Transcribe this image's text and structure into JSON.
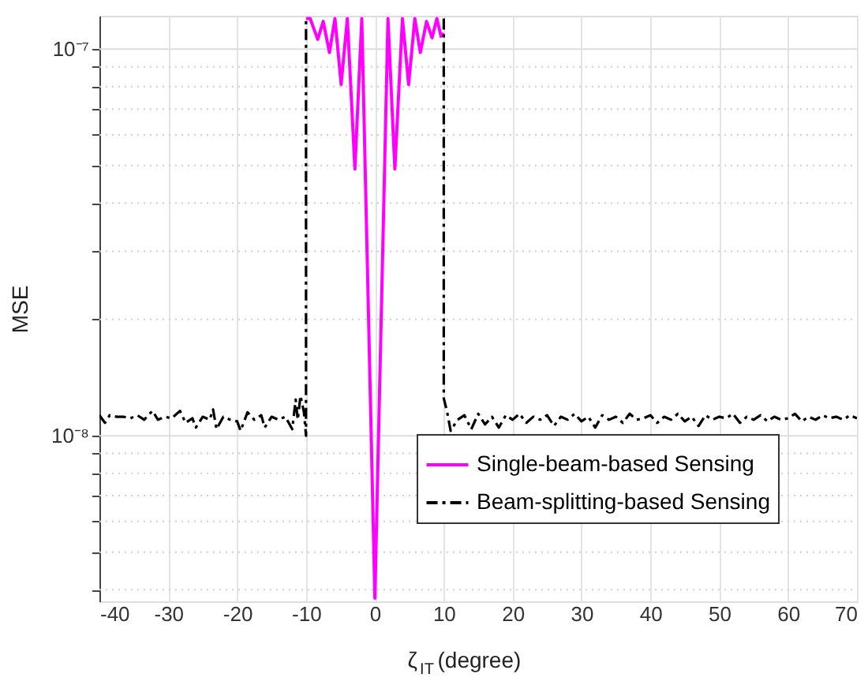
{
  "chart_data": {
    "type": "line",
    "xlabel": "ζ$_{IT}$ (degree)",
    "ylabel": "MSE",
    "log": "y",
    "grid": true,
    "legend": "bottom right",
    "xlim": [
      -40,
      70
    ],
    "xticks": [
      -40,
      -30,
      -20,
      -10,
      0,
      10,
      20,
      30,
      40,
      50,
      60,
      70
    ],
    "ylim": [
      3.73e-09,
      1.22e-07
    ],
    "yticks": [
      {
        "value": 4e-09,
        "label": null
      },
      {
        "value": 5e-09,
        "label": null
      },
      {
        "value": 6e-09,
        "label": null
      },
      {
        "value": 7e-09,
        "label": null
      },
      {
        "value": 8e-09,
        "label": null
      },
      {
        "value": 9e-09,
        "label": null
      },
      {
        "value": 1e-08,
        "label": "10⁻⁸"
      },
      {
        "value": 2e-08,
        "label": null
      },
      {
        "value": 3e-08,
        "label": null
      },
      {
        "value": 4e-08,
        "label": null
      },
      {
        "value": 5e-08,
        "label": null
      },
      {
        "value": 6e-08,
        "label": null
      },
      {
        "value": 7e-08,
        "label": null
      },
      {
        "value": 8e-08,
        "label": null
      },
      {
        "value": 9e-08,
        "label": null
      },
      {
        "value": 1e-07,
        "label": "10⁻⁷"
      }
    ],
    "series": [
      {
        "name": "Single-beam-based Sensing",
        "color": "#ff00ff",
        "line_style": "solid",
        "x": [
          -10,
          -9.4,
          -8.3,
          -7.5,
          -6.6,
          -5.8,
          -4.9,
          -4.0,
          -2.9,
          -1.9,
          0,
          1.9,
          2.9,
          4.0,
          4.9,
          5.8,
          6.6,
          7.5,
          8.3,
          9.0,
          9.6,
          10
        ],
        "values": [
          1.2e-07,
          1.2e-07,
          1.06e-07,
          1.18e-07,
          9.8e-08,
          1.2e-07,
          8.1e-08,
          1.2e-07,
          4.9e-08,
          1.2e-07,
          3.8e-09,
          1.2e-07,
          4.9e-08,
          1.2e-07,
          8.1e-08,
          1.2e-07,
          9.8e-08,
          1.18e-07,
          1.07e-07,
          1.2e-07,
          1.08e-07,
          1.1e-07
        ]
      },
      {
        "name": "Beam-splitting-based Sensing",
        "color": "#000000",
        "line_style": "dashdot",
        "x": [
          -40,
          -39.2,
          -38.5,
          -37.5,
          -36.5,
          -35.5,
          -34.5,
          -33.5,
          -32.3,
          -31.5,
          -30.5,
          -29.5,
          -28.3,
          -27.5,
          -26.5,
          -26,
          -25,
          -24,
          -23.5,
          -23,
          -22,
          -21,
          -20,
          -19.5,
          -18.5,
          -17.5,
          -16.5,
          -16,
          -15,
          -14,
          -13,
          -12,
          -11.5,
          -11.2,
          -10.8,
          -10.3,
          -10,
          -10,
          -5,
          10,
          10,
          10.5,
          11,
          12,
          13,
          14,
          15,
          16,
          17,
          18,
          19,
          20,
          21,
          22,
          23,
          24,
          25,
          26,
          27,
          28,
          29,
          30,
          31,
          32,
          33,
          34,
          35,
          36,
          37,
          38,
          39,
          40,
          41,
          42,
          43,
          44,
          45,
          46,
          47,
          48,
          49,
          50,
          51,
          52,
          53,
          54,
          55,
          56,
          57,
          58,
          59,
          60,
          61,
          62,
          63,
          64,
          65,
          66,
          67,
          68,
          69,
          70
        ],
        "values": [
          1.13e-08,
          1.08e-08,
          1.13e-08,
          1.12e-08,
          1.12e-08,
          1.11e-08,
          1.13e-08,
          1.1e-08,
          1.16e-08,
          1.1e-08,
          1.12e-08,
          1.11e-08,
          1.16e-08,
          1.08e-08,
          1.11e-08,
          1.05e-08,
          1.12e-08,
          1.1e-08,
          1.17e-08,
          1.04e-08,
          1.12e-08,
          1.1e-08,
          1.09e-08,
          1.03e-08,
          1.15e-08,
          1.1e-08,
          1.13e-08,
          1.05e-08,
          1.12e-08,
          1.1e-08,
          1.12e-08,
          1.04e-08,
          1.24e-08,
          1.1e-08,
          1.27e-08,
          1.15e-08,
          1e-08,
          1.2e-07,
          null,
          1.2e-07,
          1.25e-08,
          1.15e-08,
          1.03e-08,
          1.1e-08,
          1.13e-08,
          1.04e-08,
          1.14e-08,
          1.07e-08,
          1.12e-08,
          1.05e-08,
          1.13e-08,
          1.1e-08,
          1.14e-08,
          1.08e-08,
          1.12e-08,
          1.1e-08,
          1.13e-08,
          1.06e-08,
          1.12e-08,
          1.1e-08,
          1.14e-08,
          1.09e-08,
          1.12e-08,
          1.05e-08,
          1.13e-08,
          1.1e-08,
          1.12e-08,
          1.08e-08,
          1.14e-08,
          1.1e-08,
          1.11e-08,
          1.13e-08,
          1.08e-08,
          1.12e-08,
          1.1e-08,
          1.14e-08,
          1.09e-08,
          1.12e-08,
          1.06e-08,
          1.13e-08,
          1.1e-08,
          1.12e-08,
          1.11e-08,
          1.14e-08,
          1.08e-08,
          1.12e-08,
          1.1e-08,
          1.13e-08,
          1.09e-08,
          1.12e-08,
          1.1e-08,
          1.11e-08,
          1.14e-08,
          1.09e-08,
          1.12e-08,
          1.1e-08,
          1.13e-08,
          1.11e-08,
          1.12e-08,
          1.1e-08,
          1.13e-08,
          1.11e-08
        ]
      }
    ]
  }
}
